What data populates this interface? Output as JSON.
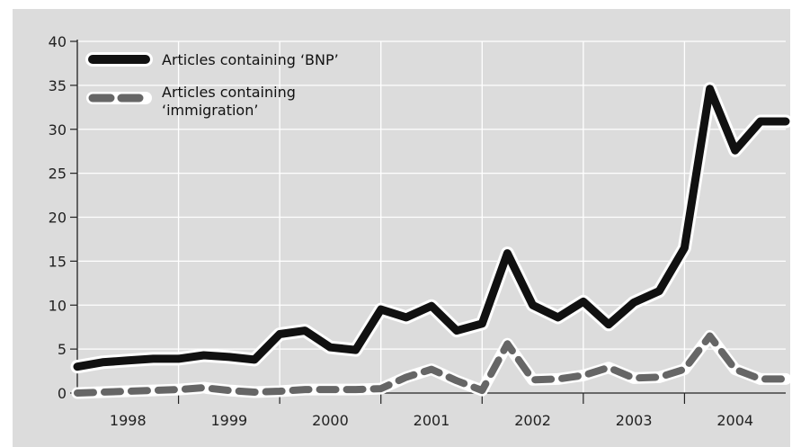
{
  "chart_data": {
    "type": "line",
    "title": "",
    "xlabel": "",
    "ylabel": "",
    "ylim": [
      0,
      40
    ],
    "yticks": [
      "0",
      "5",
      "10",
      "15",
      "20",
      "25",
      "30",
      "35",
      "40"
    ],
    "year_labels": [
      "1998",
      "1999",
      "2000",
      "2001",
      "2002",
      "2003",
      "2004"
    ],
    "x_range_years": [
      1997.75,
      2004.75
    ],
    "grid": true,
    "legend_position": "top-left",
    "colors": {
      "background": "#dcdcdc",
      "bnp": "#111111",
      "immigration": "#666666",
      "outline": "#ffffff"
    },
    "series": [
      {
        "name": "Articles containing ‘BNP’",
        "label_lines": [
          "Articles containing ‘BNP’"
        ],
        "x": [
          1997.75,
          1998.0,
          1998.25,
          1998.5,
          1998.75,
          1999.0,
          1999.25,
          1999.5,
          1999.75,
          2000.0,
          2000.25,
          2000.5,
          2000.75,
          2001.0,
          2001.25,
          2001.5,
          2001.75,
          2002.0,
          2002.25,
          2002.5,
          2002.75,
          2003.0,
          2003.25,
          2003.5,
          2003.75,
          2004.0,
          2004.25,
          2004.5,
          2004.75
        ],
        "y": [
          3.0,
          3.5,
          3.7,
          3.9,
          3.9,
          4.3,
          4.1,
          3.8,
          6.7,
          7.1,
          5.2,
          4.9,
          9.5,
          8.6,
          9.9,
          7.1,
          7.9,
          15.9,
          10.0,
          8.6,
          10.4,
          7.8,
          10.3,
          11.6,
          16.5,
          34.6,
          27.6,
          30.9,
          30.9
        ]
      },
      {
        "name": "Articles containing ‘immigration’",
        "label_lines": [
          "Articles containing",
          "‘immigration’"
        ],
        "x": [
          1997.75,
          1998.0,
          1998.25,
          1998.5,
          1998.75,
          1999.0,
          1999.25,
          1999.5,
          1999.75,
          2000.0,
          2000.25,
          2000.5,
          2000.75,
          2001.0,
          2001.25,
          2001.5,
          2001.75,
          2002.0,
          2002.25,
          2002.5,
          2002.75,
          2003.0,
          2003.25,
          2003.5,
          2003.75,
          2004.0,
          2004.25,
          2004.5,
          2004.75
        ],
        "y": [
          0.0,
          0.1,
          0.2,
          0.3,
          0.4,
          0.6,
          0.3,
          0.1,
          0.2,
          0.4,
          0.4,
          0.4,
          0.5,
          1.8,
          2.7,
          1.4,
          0.3,
          5.6,
          1.5,
          1.6,
          2.0,
          2.9,
          1.7,
          1.8,
          2.7,
          6.5,
          2.7,
          1.6,
          1.6
        ]
      }
    ]
  }
}
